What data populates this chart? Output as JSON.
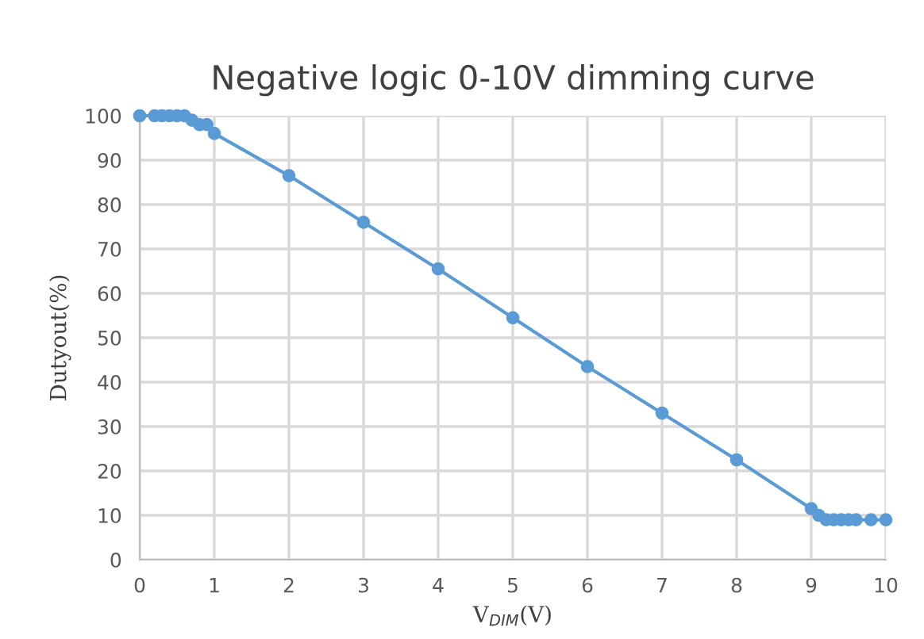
{
  "chart_data": {
    "type": "line",
    "title": "Negative logic 0-10V dimming curve",
    "xlabel": "V$_{DIM}$(V)",
    "ylabel": "Dutyout(%)",
    "x": [
      0,
      0.2,
      0.3,
      0.4,
      0.5,
      0.6,
      0.7,
      0.8,
      0.9,
      1,
      2,
      3,
      4,
      5,
      6,
      7,
      8,
      9,
      9.1,
      9.2,
      9.3,
      9.4,
      9.5,
      9.6,
      9.8,
      10
    ],
    "series": [
      {
        "color": "#5b9bd5",
        "values": [
          100,
          100,
          100,
          100,
          100,
          100,
          99,
          98,
          98,
          96,
          86.5,
          76,
          65.5,
          54.5,
          43.5,
          33,
          22.5,
          11.5,
          10,
          9,
          9,
          9,
          9,
          9,
          9,
          9
        ]
      }
    ],
    "xlim": [
      0,
      10
    ],
    "xticks": [
      0,
      1,
      2,
      3,
      4,
      5,
      6,
      7,
      8,
      9,
      10
    ],
    "ylim": [
      0,
      100
    ],
    "yticks": [
      0,
      10,
      20,
      30,
      40,
      50,
      60,
      70,
      80,
      90,
      100
    ],
    "grid": true,
    "marker": "circle",
    "line_style": "solid",
    "legend": false
  }
}
